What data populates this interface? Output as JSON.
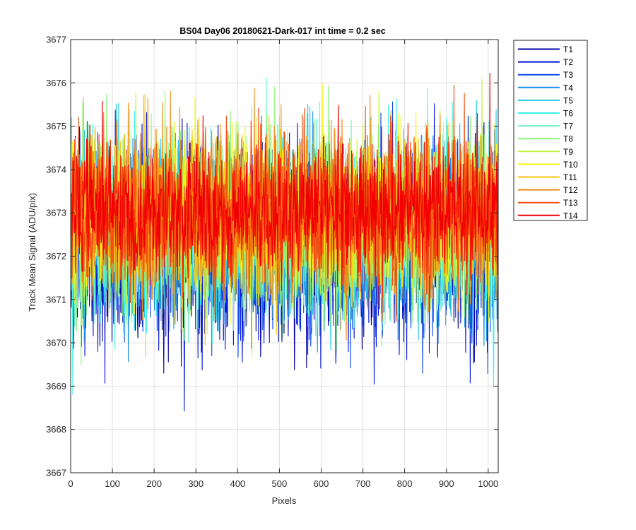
{
  "chart_data": {
    "type": "line",
    "title": "BS04 Day06 20180621-Dark-017 int time = 0.2 sec",
    "xlabel": "Pixels",
    "ylabel": "Track Mean Signal (ADU/pix)",
    "xlim": [
      0,
      1024
    ],
    "ylim": [
      3667,
      3677
    ],
    "xticks": [
      0,
      100,
      200,
      300,
      400,
      500,
      600,
      700,
      800,
      900,
      1000
    ],
    "yticks": [
      3667,
      3668,
      3669,
      3670,
      3671,
      3672,
      3673,
      3674,
      3675,
      3676,
      3677
    ],
    "grid": true,
    "legend_position": "outside-top-right",
    "n_points": 1024,
    "series": [
      {
        "name": "T1",
        "color": "#0000a6",
        "mean": 3672.2,
        "min": 3667.7,
        "max": 3675.2
      },
      {
        "name": "T2",
        "color": "#0015d5",
        "mean": 3672.3,
        "min": 3668.4,
        "max": 3676.7
      },
      {
        "name": "T3",
        "color": "#0a48f0",
        "mean": 3672.4,
        "min": 3668.5,
        "max": 3676.3
      },
      {
        "name": "T4",
        "color": "#1a90e8",
        "mean": 3672.5,
        "min": 3668.6,
        "max": 3675.9
      },
      {
        "name": "T5",
        "color": "#23c8e6",
        "mean": 3672.6,
        "min": 3667.8,
        "max": 3675.6
      },
      {
        "name": "T6",
        "color": "#3af0ea",
        "mean": 3672.6,
        "min": 3668.2,
        "max": 3675.7
      },
      {
        "name": "T7",
        "color": "#6cf2c0",
        "mean": 3672.7,
        "min": 3669.0,
        "max": 3676.3
      },
      {
        "name": "T8",
        "color": "#8cf67e",
        "mean": 3672.8,
        "min": 3669.2,
        "max": 3676.9
      },
      {
        "name": "T9",
        "color": "#c2f23c",
        "mean": 3672.8,
        "min": 3669.4,
        "max": 3676.1
      },
      {
        "name": "T10",
        "color": "#f5f51a",
        "mean": 3672.9,
        "min": 3669.5,
        "max": 3676.5
      },
      {
        "name": "T11",
        "color": "#f5c212",
        "mean": 3672.9,
        "min": 3669.7,
        "max": 3676.2
      },
      {
        "name": "T12",
        "color": "#f58a14",
        "mean": 3673.0,
        "min": 3669.8,
        "max": 3676.8
      },
      {
        "name": "T13",
        "color": "#f44e12",
        "mean": 3673.0,
        "min": 3670.0,
        "max": 3676.5
      },
      {
        "name": "T14",
        "color": "#f20000",
        "mean": 3673.0,
        "min": 3670.3,
        "max": 3676.3
      }
    ]
  }
}
